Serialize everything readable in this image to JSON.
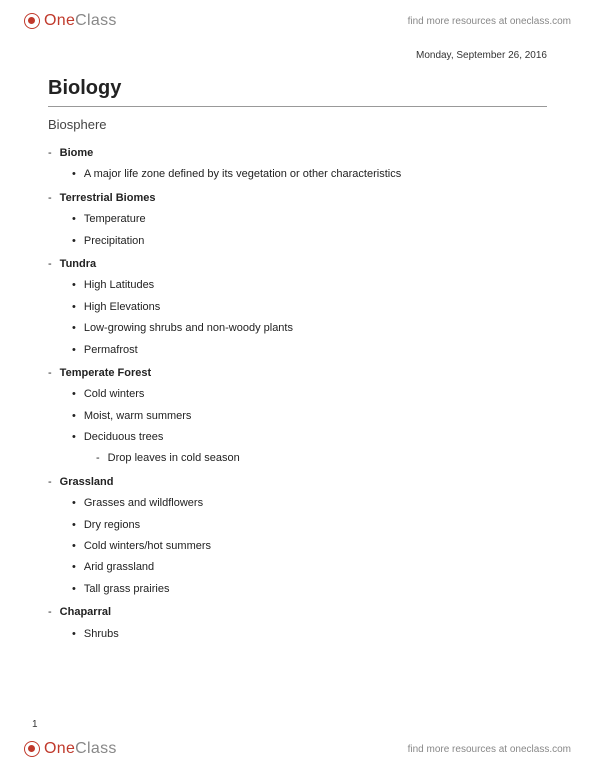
{
  "brand": {
    "one": "One",
    "class": "Class",
    "tagline": "find more resources at oneclass.com"
  },
  "doc": {
    "date": "Monday, September 26, 2016",
    "title": "Biology",
    "subtitle": "Biosphere",
    "page_number": "1"
  },
  "outline": [
    {
      "level": 1,
      "text": "Biome"
    },
    {
      "level": 2,
      "text": "A major life zone defined by its vegetation or other characteristics"
    },
    {
      "level": 1,
      "text": "Terrestrial Biomes"
    },
    {
      "level": 2,
      "text": "Temperature"
    },
    {
      "level": 2,
      "text": "Precipitation"
    },
    {
      "level": 1,
      "text": "Tundra"
    },
    {
      "level": 2,
      "text": "High Latitudes"
    },
    {
      "level": 2,
      "text": "High Elevations"
    },
    {
      "level": 2,
      "text": "Low-growing shrubs and non-woody plants"
    },
    {
      "level": 2,
      "text": "Permafrost"
    },
    {
      "level": 1,
      "text": "Temperate Forest"
    },
    {
      "level": 2,
      "text": "Cold winters"
    },
    {
      "level": 2,
      "text": "Moist, warm summers"
    },
    {
      "level": 2,
      "text": "Deciduous trees"
    },
    {
      "level": 3,
      "text": "Drop leaves in cold season"
    },
    {
      "level": 1,
      "text": "Grassland"
    },
    {
      "level": 2,
      "text": "Grasses and wildflowers"
    },
    {
      "level": 2,
      "text": "Dry regions"
    },
    {
      "level": 2,
      "text": "Cold winters/hot summers"
    },
    {
      "level": 2,
      "text": "Arid grassland"
    },
    {
      "level": 2,
      "text": "Tall grass prairies"
    },
    {
      "level": 1,
      "text": "Chaparral"
    },
    {
      "level": 2,
      "text": "Shrubs"
    }
  ]
}
